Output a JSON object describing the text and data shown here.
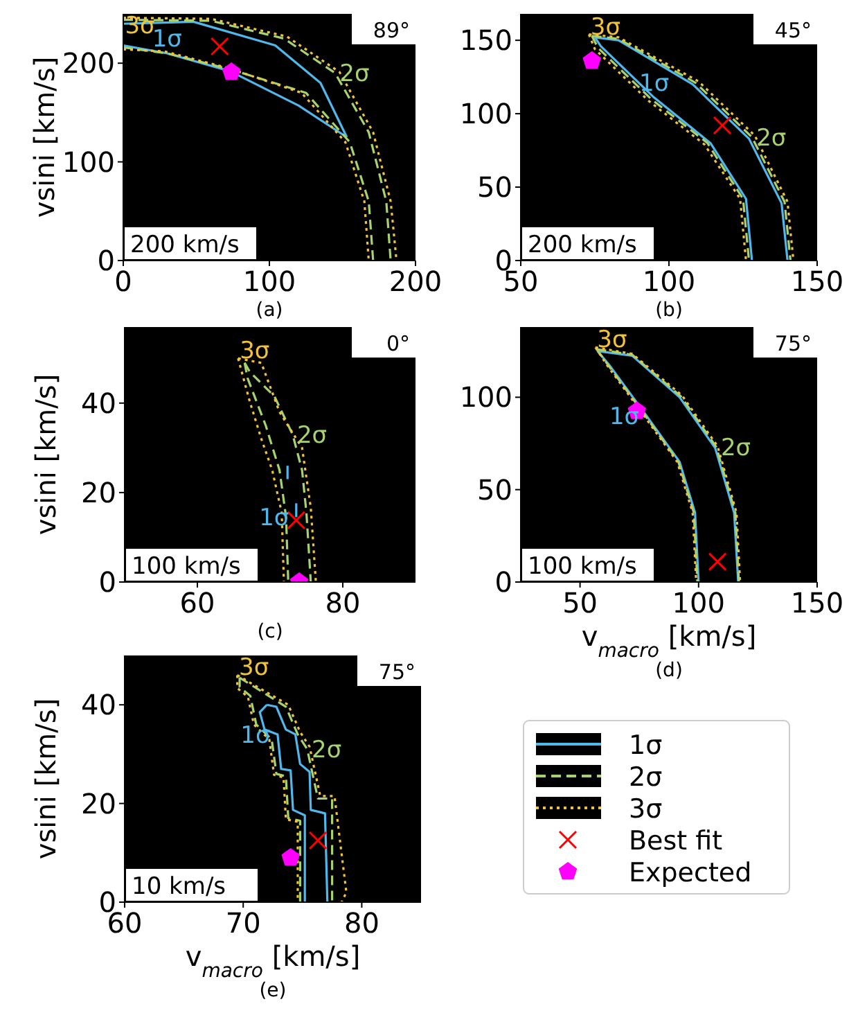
{
  "chart_data": [
    {
      "type": "line",
      "ylabel": "vsini [km/s]",
      "xlim": [
        0,
        200
      ],
      "ylim": [
        0,
        250
      ],
      "xticks": [
        0,
        100,
        200
      ],
      "yticks": [
        0,
        100,
        200
      ],
      "grid": false,
      "annotations": [
        "89°",
        "200 km/s",
        "(a)",
        "1σ",
        "2σ",
        "3σ"
      ],
      "series": [
        {
          "color": "#4fb8ec",
          "line_style": "solid",
          "x": [
            0,
            48,
            104,
            135,
            153
          ],
          "values": [
            240,
            242,
            218,
            180,
            125
          ]
        },
        {
          "color": "#4fb8ec",
          "line_style": "solid",
          "x": [
            0,
            30,
            73,
            120,
            153
          ],
          "values": [
            218,
            210,
            192,
            157,
            125
          ]
        },
        {
          "color": "#a8d26e",
          "line_style": "dashed",
          "x": [
            0,
            60,
            110,
            145,
            168,
            180,
            183
          ],
          "values": [
            244,
            243,
            225,
            190,
            130,
            60,
            0
          ]
        },
        {
          "color": "#a8d26e",
          "line_style": "dashed",
          "x": [
            0,
            30,
            75,
            125,
            155,
            168,
            171
          ],
          "values": [
            216,
            210,
            193,
            170,
            120,
            60,
            0
          ]
        },
        {
          "color": "#f2c33a",
          "line_style": "dotted",
          "x": [
            0,
            60,
            112,
            148,
            171,
            183,
            187
          ],
          "values": [
            246,
            245,
            227,
            191,
            130,
            60,
            0
          ]
        },
        {
          "color": "#f2c33a",
          "line_style": "dotted",
          "x": [
            0,
            28,
            72,
            122,
            152,
            165,
            168
          ],
          "values": [
            214,
            212,
            195,
            170,
            120,
            60,
            0
          ]
        },
        {
          "type": "scatter",
          "color": "#ff0000",
          "marker": "cross",
          "x": [
            66
          ],
          "values": [
            217
          ]
        },
        {
          "type": "scatter",
          "color": "#ff00ff",
          "x": [
            74
          ],
          "values": [
            191
          ]
        }
      ]
    },
    {
      "type": "line",
      "xlim": [
        50,
        150
      ],
      "ylim": [
        0,
        168
      ],
      "xticks": [
        50,
        100,
        150
      ],
      "yticks": [
        0,
        50,
        100,
        150
      ],
      "grid": false,
      "annotations": [
        "45°",
        "200 km/s",
        "(b)",
        "1σ",
        "2σ",
        "3σ"
      ],
      "series": [
        {
          "color": "#4fb8ec",
          "line_style": "solid",
          "x": [
            75,
            83,
            108,
            127,
            138,
            140
          ],
          "values": [
            152,
            150,
            120,
            83,
            39,
            0
          ]
        },
        {
          "color": "#4fb8ec",
          "line_style": "solid",
          "x": [
            75,
            77,
            95,
            114,
            126,
            128
          ],
          "values": [
            152,
            146,
            111,
            80,
            42,
            0
          ]
        },
        {
          "color": "#a8d26e",
          "line_style": "dashed",
          "x": [
            74,
            83,
            109,
            128,
            139,
            141
          ],
          "values": [
            153,
            151,
            121,
            84,
            40,
            0
          ]
        },
        {
          "color": "#a8d26e",
          "line_style": "dashed",
          "x": [
            74,
            76,
            94,
            113,
            125,
            127
          ],
          "values": [
            153,
            145,
            110,
            80,
            42,
            0
          ]
        },
        {
          "color": "#f2c33a",
          "line_style": "dotted",
          "x": [
            73,
            83,
            110,
            129,
            140,
            142
          ],
          "values": [
            154,
            152,
            122,
            85,
            40,
            0
          ]
        },
        {
          "color": "#f2c33a",
          "line_style": "dotted",
          "x": [
            73,
            75,
            93,
            112,
            124,
            126
          ],
          "values": [
            154,
            144,
            109,
            79,
            42,
            0
          ]
        },
        {
          "type": "scatter",
          "color": "#ff0000",
          "marker": "cross",
          "x": [
            118
          ],
          "values": [
            92
          ]
        },
        {
          "type": "scatter",
          "color": "#ff00ff",
          "x": [
            74
          ],
          "values": [
            136
          ]
        }
      ]
    },
    {
      "type": "line",
      "ylabel": "vsini [km/s]",
      "xlim": [
        50,
        90
      ],
      "ylim": [
        0,
        57
      ],
      "xticks": [
        60,
        80
      ],
      "yticks": [
        0,
        20,
        40
      ],
      "grid": false,
      "annotations": [
        "0°",
        "100 km/s",
        "(c)",
        "1σ",
        "2σ",
        "3σ"
      ],
      "series": [
        {
          "color": "#4fb8ec",
          "line_style": "solid",
          "x": [
            72.4,
            72.4
          ],
          "values": [
            23,
            26
          ]
        },
        {
          "color": "#4fb8ec",
          "line_style": "solid",
          "x": [
            73.6,
            73.6
          ],
          "values": [
            14.5,
            17.6
          ]
        },
        {
          "color": "#a8d26e",
          "line_style": "dashed",
          "x": [
            66.5,
            67.2,
            70.6,
            73.1,
            74.4,
            75,
            75.6
          ],
          "values": [
            49,
            47,
            41.5,
            33,
            25,
            15.5,
            0
          ]
        },
        {
          "color": "#a8d26e",
          "line_style": "dashed",
          "x": [
            66.5,
            66.9,
            69.4,
            71.3,
            72.2,
            72.5
          ],
          "values": [
            49,
            45.6,
            35,
            25,
            14.5,
            0
          ]
        },
        {
          "color": "#f2c33a",
          "line_style": "dotted",
          "x": [
            65.6,
            68.8,
            71.3,
            74.4,
            75.6,
            76.3
          ],
          "values": [
            50,
            49,
            38,
            30,
            16.6,
            0
          ]
        },
        {
          "color": "#f2c33a",
          "line_style": "dotted",
          "x": [
            65.6,
            67.2,
            68.8,
            70.3,
            71.6,
            71.9
          ],
          "values": [
            50,
            40.4,
            32,
            25,
            15.5,
            0
          ]
        },
        {
          "type": "scatter",
          "color": "#ff0000",
          "marker": "cross",
          "x": [
            73.6
          ],
          "values": [
            13.8
          ]
        },
        {
          "type": "scatter",
          "color": "#ff00ff",
          "x": [
            74
          ],
          "values": [
            0
          ]
        }
      ]
    },
    {
      "type": "line",
      "xlabel": "v$_{macro}$ [km/s]",
      "xlim": [
        25,
        150
      ],
      "ylim": [
        0,
        138
      ],
      "xticks": [
        50,
        100,
        150
      ],
      "yticks": [
        0,
        50,
        100
      ],
      "grid": false,
      "annotations": [
        "75°",
        "100 km/s",
        "(d)",
        "1σ",
        "2σ",
        "3σ"
      ],
      "series": [
        {
          "color": "#4fb8ec",
          "line_style": "solid",
          "x": [
            57.4,
            72,
            92,
            107,
            115,
            116.7
          ],
          "values": [
            125,
            122.5,
            100,
            72.5,
            37.5,
            0
          ]
        },
        {
          "color": "#4fb8ec",
          "line_style": "solid",
          "x": [
            57.4,
            62.3,
            78,
            92,
            98.5,
            100
          ],
          "values": [
            125,
            117.5,
            90,
            65,
            37.5,
            0
          ]
        },
        {
          "color": "#a8d26e",
          "line_style": "dashed",
          "x": [
            57,
            72,
            92.5,
            107.5,
            115.5,
            117
          ],
          "values": [
            126,
            123,
            100.5,
            73,
            37.5,
            0
          ]
        },
        {
          "color": "#a8d26e",
          "line_style": "dashed",
          "x": [
            57,
            61.8,
            77.5,
            91.5,
            98,
            99.5
          ],
          "values": [
            126,
            117.5,
            90,
            65,
            37.5,
            0
          ]
        },
        {
          "color": "#f2c33a",
          "line_style": "dotted",
          "x": [
            56.5,
            72,
            93,
            108,
            116,
            117.5
          ],
          "values": [
            127,
            123.5,
            101,
            73.5,
            37.5,
            0
          ]
        },
        {
          "color": "#f2c33a",
          "line_style": "dotted",
          "x": [
            56.5,
            61.3,
            77,
            91,
            97.5,
            99
          ],
          "values": [
            127,
            117.5,
            90,
            65,
            37.5,
            0
          ]
        },
        {
          "type": "scatter",
          "color": "#ff0000",
          "marker": "cross",
          "x": [
            108
          ],
          "values": [
            11
          ]
        },
        {
          "type": "scatter",
          "color": "#ff00ff",
          "x": [
            74
          ],
          "values": [
            92.5
          ]
        }
      ]
    },
    {
      "type": "line",
      "xlabel": "v$_{macro}$ [km/s]",
      "ylabel": "vsini [km/s]",
      "xlim": [
        60,
        85
      ],
      "ylim": [
        0,
        50
      ],
      "xticks": [
        60,
        70,
        80
      ],
      "yticks": [
        0,
        20,
        40
      ],
      "grid": false,
      "legend": "right",
      "annotations": [
        "75°",
        "10 km/s",
        "(e)",
        "1σ",
        "2σ",
        "3σ"
      ],
      "series": [
        {
          "name": "1σ",
          "color": "#4fb8ec",
          "line_style": "solid",
          "x": [
            72,
            72.8,
            73.6,
            74.4,
            74.8,
            75.6,
            75.7,
            76.9,
            77.1
          ],
          "values": [
            40,
            39.6,
            35,
            34,
            28,
            26.4,
            18.7,
            18,
            0
          ]
        },
        {
          "color": "#4fb8ec",
          "line_style": "solid",
          "x": [
            72,
            71.4,
            71.8,
            72.9,
            73.2,
            74,
            74.2,
            75.2,
            75.2
          ],
          "values": [
            40,
            38.5,
            35,
            34,
            27,
            26.7,
            18.7,
            17.6,
            0
          ]
        },
        {
          "name": "2σ",
          "color": "#a8d26e",
          "line_style": "dashed",
          "x": [
            69.7,
            73.6,
            74.6,
            75.4,
            76.3,
            77.5,
            77.5
          ],
          "values": [
            45.5,
            39.6,
            34,
            31,
            21,
            21,
            0
          ]
        },
        {
          "color": "#a8d26e",
          "line_style": "dashed",
          "x": [
            69.7,
            69.7,
            70.6,
            71.1,
            72.4,
            72.8,
            73.6,
            73.8,
            74.8,
            74.8
          ],
          "values": [
            45.5,
            43.6,
            41.8,
            36,
            33,
            26,
            25.5,
            17,
            16.5,
            0
          ]
        },
        {
          "name": "3σ",
          "color": "#f2c33a",
          "line_style": "dotted",
          "x": [
            69.5,
            73.8,
            74.8,
            75.6,
            76.5,
            77.7,
            78.7,
            78.3
          ],
          "values": [
            46,
            40,
            34.5,
            31.5,
            21.5,
            21.5,
            2,
            0
          ]
        },
        {
          "color": "#f2c33a",
          "line_style": "dotted",
          "x": [
            69.5,
            69.5,
            70.4,
            70.9,
            72.2,
            72.6,
            73.4,
            73.6,
            74.6,
            74.6
          ],
          "values": [
            46,
            43.4,
            41.6,
            36,
            33,
            25.8,
            25.3,
            16.8,
            16.3,
            0
          ]
        },
        {
          "name": "Best fit",
          "type": "scatter",
          "color": "#ff0000",
          "marker": "cross",
          "x": [
            76.3
          ],
          "values": [
            12.5
          ]
        },
        {
          "name": "Expected",
          "type": "scatter",
          "color": "#ff00ff",
          "x": [
            74
          ],
          "values": [
            9
          ]
        }
      ]
    }
  ]
}
